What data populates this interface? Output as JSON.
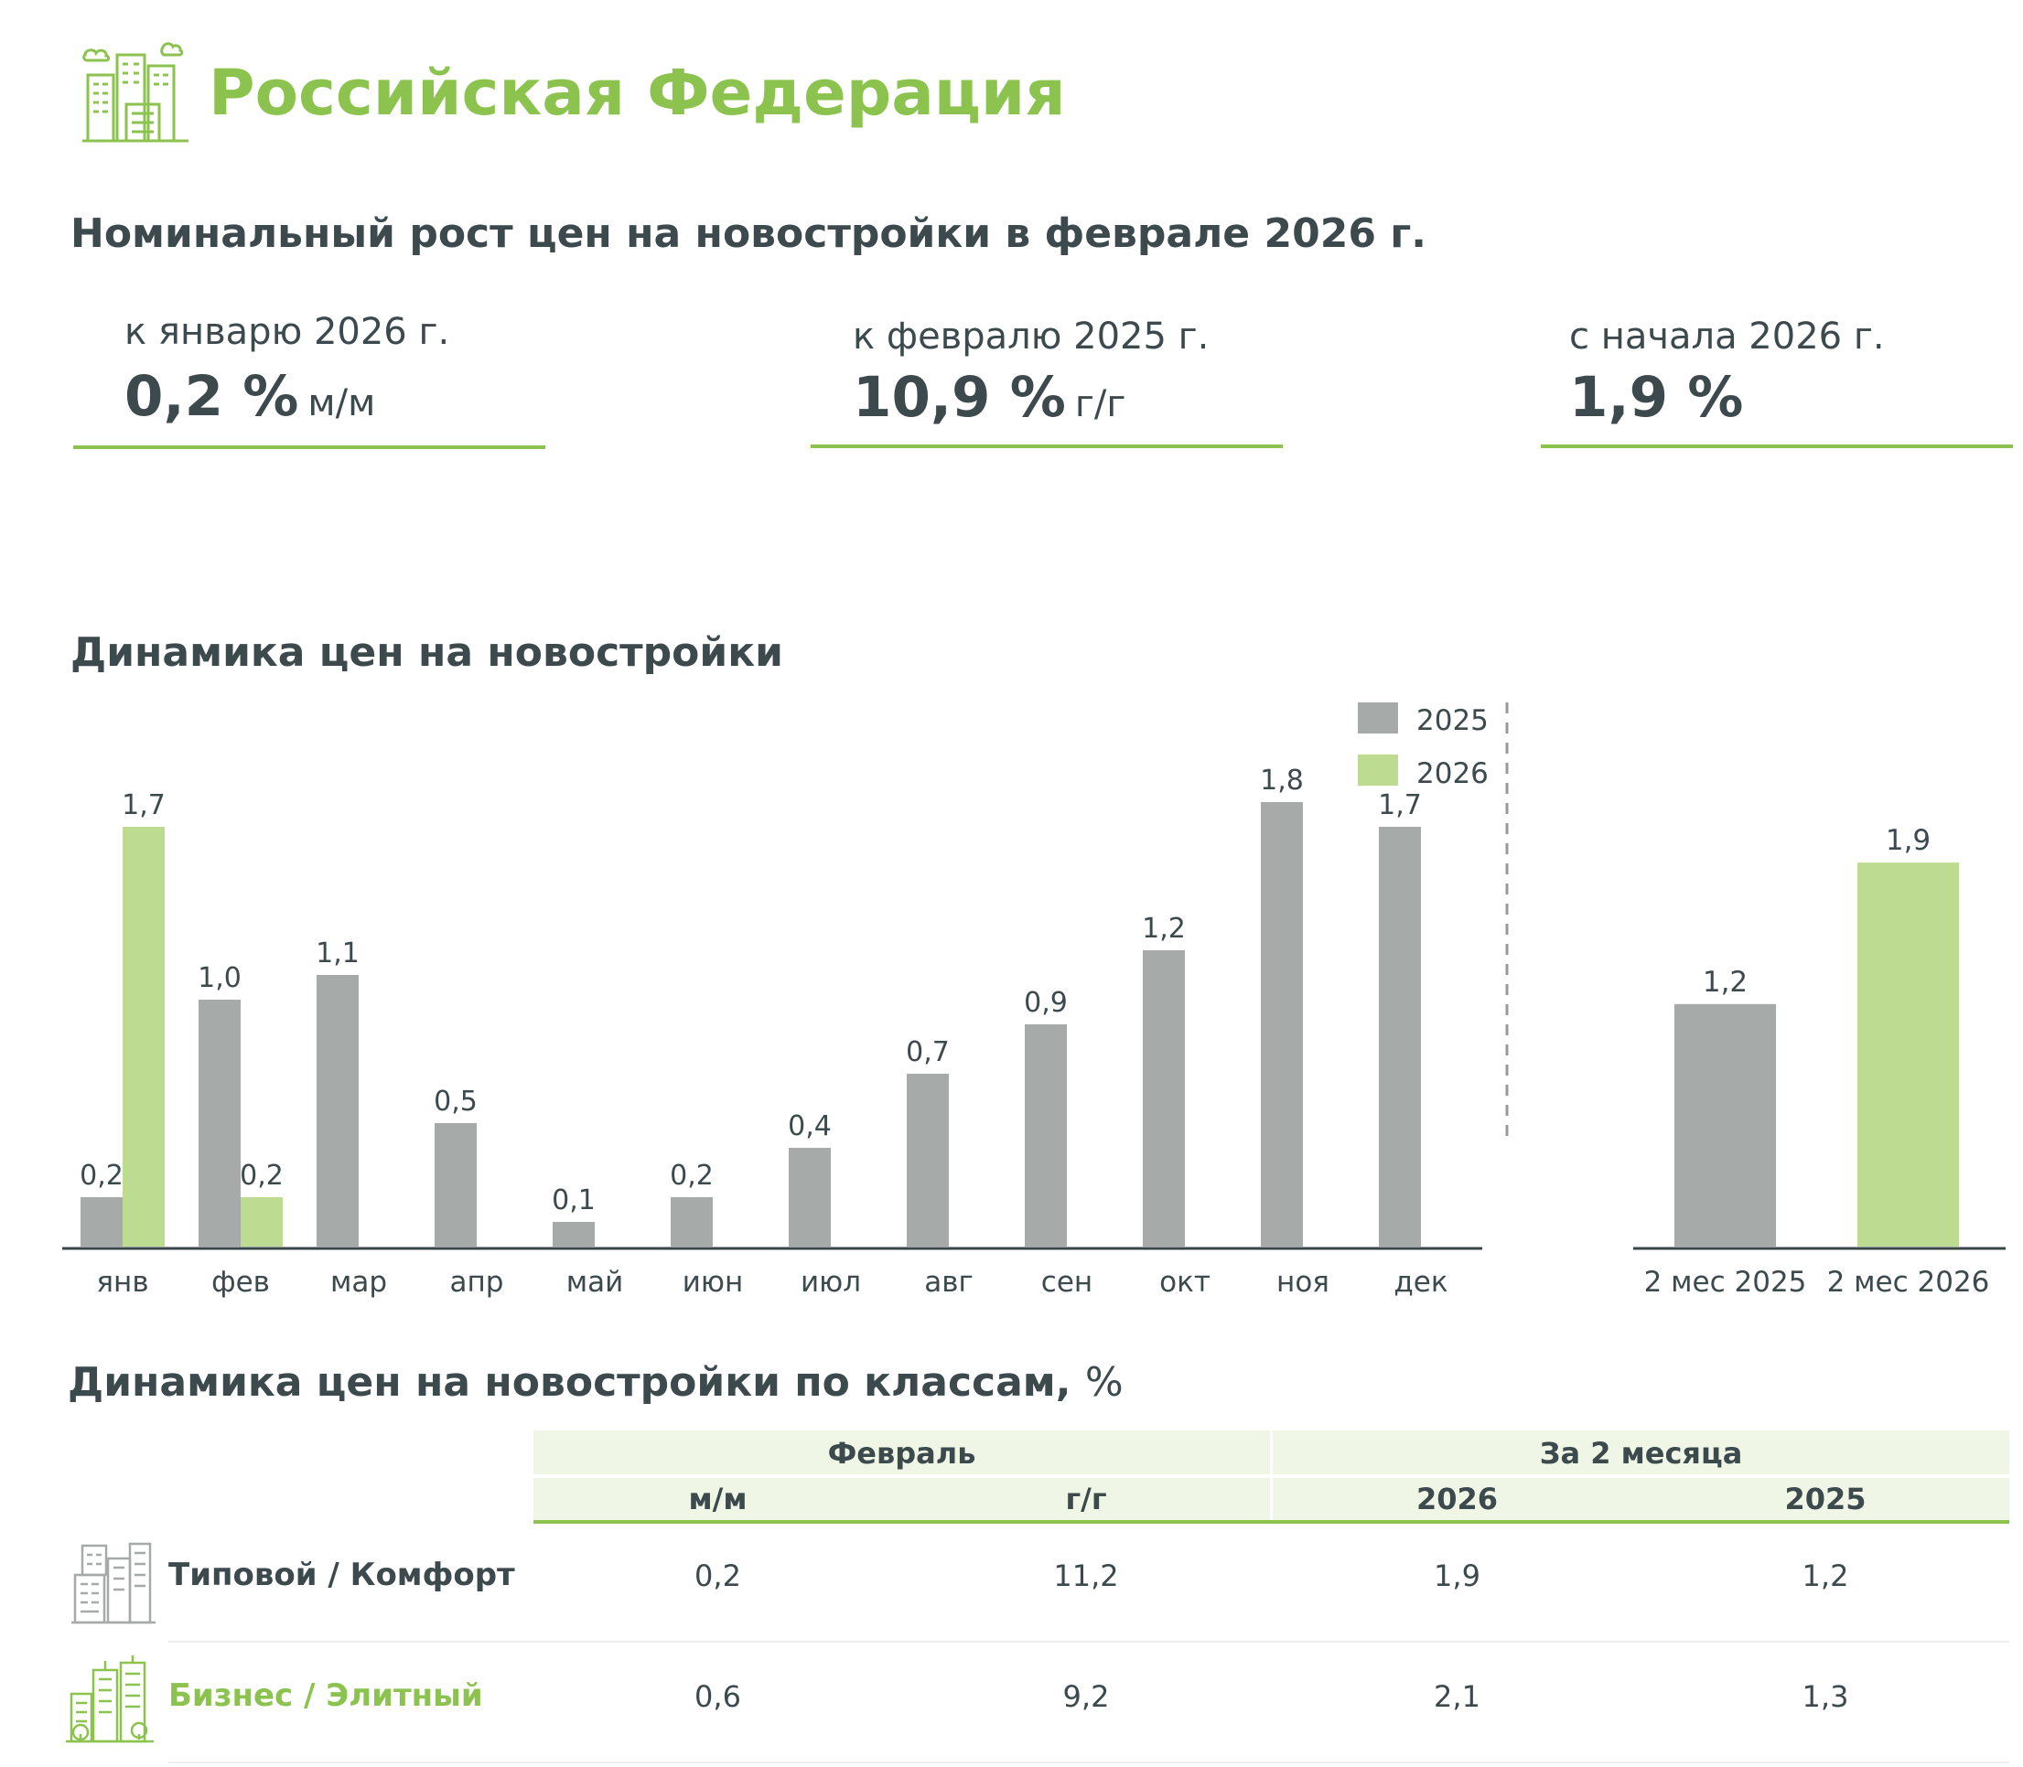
{
  "header": {
    "region": "Российская Федерация",
    "main_title": "Номинальный рост цен на новостройки в феврале 2026 г."
  },
  "kpis": [
    {
      "label": "к январю 2026 г.",
      "value": "0,2 %",
      "unit": "м/м"
    },
    {
      "label": "к февралю 2025 г.",
      "value": "10,9 %",
      "unit": "г/г"
    },
    {
      "label": "с начала 2026 г.",
      "value": "1,9 %",
      "unit": ""
    }
  ],
  "chart_title": "Динамика цен на новостройки",
  "chart_data": [
    {
      "type": "bar",
      "title": "Динамика цен на новостройки",
      "categories": [
        "янв",
        "фев",
        "мар",
        "апр",
        "май",
        "июн",
        "июл",
        "авг",
        "сен",
        "окт",
        "ноя",
        "дек"
      ],
      "series": [
        {
          "name": "2025",
          "color": "#a6aaa8",
          "values": [
            0.2,
            1.0,
            1.1,
            0.5,
            0.1,
            0.2,
            0.4,
            0.7,
            0.9,
            1.2,
            1.8,
            1.7
          ],
          "labels": [
            "0,2",
            "1,0",
            "1,1",
            "0,5",
            "0,1",
            "0,2",
            "0,4",
            "0,7",
            "0,9",
            "1,2",
            "1,8",
            "1,7"
          ]
        },
        {
          "name": "2026",
          "color": "#bddc92",
          "values": [
            1.7,
            0.2,
            null,
            null,
            null,
            null,
            null,
            null,
            null,
            null,
            null,
            null
          ],
          "labels": [
            "1,7",
            "0,2",
            null,
            null,
            null,
            null,
            null,
            null,
            null,
            null,
            null,
            null
          ]
        }
      ],
      "ylim": [
        0,
        2.0
      ],
      "legend": "top-right"
    },
    {
      "type": "bar",
      "categories": [
        "2 мес 2025",
        "2 мес 2026"
      ],
      "values": [
        1.2,
        1.9
      ],
      "labels": [
        "1,2",
        "1,9"
      ],
      "colors": [
        "#a6aaa8",
        "#bddc92"
      ],
      "ylim": [
        0,
        2.0
      ]
    }
  ],
  "table": {
    "title": "Динамика цен на новостройки по классам,",
    "title_unit": "%",
    "group_headers": [
      "Февраль",
      "За 2 месяца"
    ],
    "sub_headers": [
      "м/м",
      "г/г",
      "2026",
      "2025"
    ],
    "rows": [
      {
        "name": "Типовой / Комфорт",
        "values": [
          "0,2",
          "11,2",
          "1,9",
          "1,2"
        ],
        "color": "#3d4a4d"
      },
      {
        "name": "Бизнес / Элитный",
        "values": [
          "0,6",
          "9,2",
          "2,1",
          "1,3"
        ],
        "color": "#8cc34f"
      }
    ]
  },
  "colors": {
    "accent": "#8cc34f",
    "bar2025": "#a6aaa8",
    "bar2026": "#bddc92",
    "text": "#3d4a4d",
    "table_bg": "#eff6e6"
  }
}
